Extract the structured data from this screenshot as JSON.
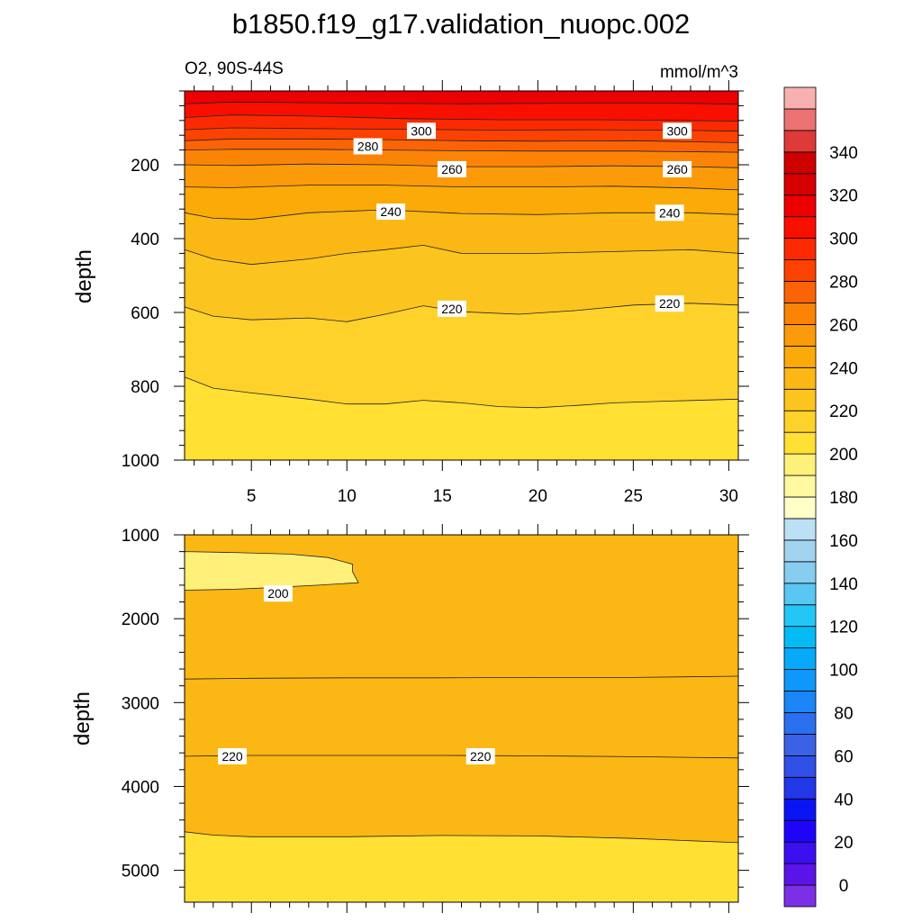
{
  "title": "b1850.f19_g17.validation_nuopc.002",
  "chart_data": {
    "type": "contour",
    "variable_label": "O2, 90S-44S",
    "units_label": "mmol/m^3",
    "ylabel": "depth",
    "x_range": [
      1.5,
      30.5
    ],
    "x_ticks": [
      5,
      10,
      15,
      20,
      25,
      30
    ],
    "colorbar": {
      "levels": [
        0,
        10,
        20,
        30,
        40,
        50,
        60,
        70,
        80,
        90,
        100,
        110,
        120,
        130,
        140,
        150,
        160,
        170,
        180,
        190,
        200,
        210,
        220,
        230,
        240,
        250,
        260,
        270,
        280,
        290,
        300,
        310,
        320,
        330,
        340,
        350
      ],
      "tick_labels": [
        "0",
        "20",
        "40",
        "60",
        "80",
        "100",
        "120",
        "140",
        "160",
        "180",
        "200",
        "220",
        "240",
        "260",
        "280",
        "300",
        "320",
        "340"
      ],
      "colors": [
        "#7d2fe6",
        "#5b14e8",
        "#3a10f0",
        "#1e05fa",
        "#0a14f2",
        "#2137e8",
        "#2f4fe6",
        "#3b62e4",
        "#2a6ff0",
        "#1a86f7",
        "#0f97fb",
        "#07aaf9",
        "#05bbf6",
        "#23c7f7",
        "#5bc6f2",
        "#86cdf0",
        "#a2d4f0",
        "#bde1f4",
        "#ffffc8",
        "#fff8a0",
        "#fff07a",
        "#ffe033",
        "#fed22a",
        "#fcc41f",
        "#fbb713",
        "#fbaa08",
        "#fc9b0a",
        "#fb8407",
        "#fa6406",
        "#fb4200",
        "#fc2a01",
        "#f90f00",
        "#ec0000",
        "#d70000",
        "#ce0000",
        "#de3a3a",
        "#ec7272",
        "#f8b0b0"
      ]
    },
    "panels": [
      {
        "name": "upper",
        "ylim": [
          0,
          1000
        ],
        "y_ticks": [
          200,
          400,
          600,
          800,
          1000
        ],
        "inverted": true,
        "isolines": [
          {
            "value": 310,
            "points": [
              [
                1.5,
                35
              ],
              [
                4,
                30
              ],
              [
                8,
                32
              ],
              [
                12,
                34
              ],
              [
                16,
                35
              ],
              [
                20,
                34
              ],
              [
                24,
                33
              ],
              [
                28,
                34
              ],
              [
                30.5,
                36
              ]
            ]
          },
          {
            "value": 300,
            "points": [
              [
                1.5,
                72
              ],
              [
                4,
                65
              ],
              [
                8,
                68
              ],
              [
                13,
                75
              ],
              [
                18,
                78
              ],
              [
                23,
                78
              ],
              [
                28,
                80
              ],
              [
                30.5,
                82
              ]
            ]
          },
          {
            "value": 290,
            "points": [
              [
                1.5,
                105
              ],
              [
                4,
                100
              ],
              [
                8,
                102
              ],
              [
                13,
                104
              ],
              [
                18,
                106
              ],
              [
                23,
                105
              ],
              [
                28,
                107
              ],
              [
                30.5,
                109
              ]
            ]
          },
          {
            "value": 280,
            "points": [
              [
                1.5,
                135
              ],
              [
                4,
                130
              ],
              [
                8,
                130
              ],
              [
                12,
                132
              ],
              [
                16,
                135
              ],
              [
                20,
                136
              ],
              [
                25,
                135
              ],
              [
                30.5,
                140
              ]
            ]
          },
          {
            "value": 270,
            "points": [
              [
                1.5,
                160
              ],
              [
                4,
                158
              ],
              [
                8,
                158
              ],
              [
                12,
                160
              ],
              [
                16,
                162
              ],
              [
                20,
                163
              ],
              [
                25,
                163
              ],
              [
                30.5,
                166
              ]
            ]
          },
          {
            "value": 260,
            "points": [
              [
                1.5,
                200
              ],
              [
                4,
                202
              ],
              [
                8,
                198
              ],
              [
                12,
                200
              ],
              [
                16,
                205
              ],
              [
                20,
                205
              ],
              [
                24,
                203
              ],
              [
                28,
                205
              ],
              [
                30.5,
                208
              ]
            ]
          },
          {
            "value": 250,
            "points": [
              [
                1.5,
                260
              ],
              [
                4,
                262
              ],
              [
                8,
                255
              ],
              [
                12,
                255
              ],
              [
                16,
                260
              ],
              [
                20,
                260
              ],
              [
                24,
                258
              ],
              [
                28,
                263
              ],
              [
                30.5,
                268
              ]
            ]
          },
          {
            "value": 240,
            "points": [
              [
                1.5,
                330
              ],
              [
                3,
                345
              ],
              [
                5,
                348
              ],
              [
                8,
                330
              ],
              [
                12,
                322
              ],
              [
                16,
                332
              ],
              [
                20,
                335
              ],
              [
                24,
                330
              ],
              [
                28,
                330
              ],
              [
                30.5,
                335
              ]
            ]
          },
          {
            "value": 230,
            "points": [
              [
                1.5,
                430
              ],
              [
                3,
                455
              ],
              [
                5,
                470
              ],
              [
                8,
                455
              ],
              [
                10,
                440
              ],
              [
                12,
                430
              ],
              [
                14,
                418
              ],
              [
                16,
                440
              ],
              [
                20,
                440
              ],
              [
                24,
                435
              ],
              [
                28,
                430
              ],
              [
                30.5,
                440
              ]
            ]
          },
          {
            "value": 220,
            "points": [
              [
                1.5,
                585
              ],
              [
                3,
                610
              ],
              [
                5,
                620
              ],
              [
                8,
                615
              ],
              [
                10,
                625
              ],
              [
                12,
                605
              ],
              [
                14,
                582
              ],
              [
                16,
                598
              ],
              [
                19,
                605
              ],
              [
                22,
                595
              ],
              [
                25,
                580
              ],
              [
                28,
                575
              ],
              [
                30.5,
                580
              ]
            ]
          },
          {
            "value": 210,
            "points": [
              [
                1.5,
                775
              ],
              [
                3,
                805
              ],
              [
                5,
                818
              ],
              [
                8,
                835
              ],
              [
                10,
                848
              ],
              [
                12,
                848
              ],
              [
                14,
                838
              ],
              [
                16,
                845
              ],
              [
                18,
                855
              ],
              [
                20,
                858
              ],
              [
                22,
                852
              ],
              [
                24,
                845
              ],
              [
                27,
                840
              ],
              [
                30.5,
                835
              ]
            ]
          }
        ],
        "labels": [
          {
            "text": "300",
            "x": 13.9,
            "y": 108
          },
          {
            "text": "300",
            "x": 27.3,
            "y": 108
          },
          {
            "text": "280",
            "x": 11.1,
            "y": 150
          },
          {
            "text": "260",
            "x": 15.5,
            "y": 212
          },
          {
            "text": "260",
            "x": 27.3,
            "y": 212
          },
          {
            "text": "240",
            "x": 12.3,
            "y": 327
          },
          {
            "text": "240",
            "x": 26.9,
            "y": 330
          },
          {
            "text": "220",
            "x": 15.5,
            "y": 590
          },
          {
            "text": "220",
            "x": 26.9,
            "y": 576
          }
        ]
      },
      {
        "name": "lower",
        "ylim": [
          1000,
          5380
        ],
        "y_ticks": [
          1000,
          2000,
          3000,
          4000,
          5000
        ],
        "inverted": true,
        "isolines": [
          {
            "value": 210,
            "points": [
              [
                1.5,
                2720
              ],
              [
                5,
                2710
              ],
              [
                10,
                2705
              ],
              [
                15,
                2705
              ],
              [
                20,
                2700
              ],
              [
                25,
                2700
              ],
              [
                30.5,
                2685
              ]
            ]
          },
          {
            "value": 220,
            "points": [
              [
                1.5,
                3640
              ],
              [
                5,
                3630
              ],
              [
                10,
                3630
              ],
              [
                15,
                3630
              ],
              [
                20,
                3635
              ],
              [
                25,
                3645
              ],
              [
                30.5,
                3660
              ]
            ]
          },
          {
            "value": 230,
            "points": [
              [
                1.5,
                4540
              ],
              [
                3,
                4580
              ],
              [
                5,
                4600
              ],
              [
                10,
                4600
              ],
              [
                15,
                4585
              ],
              [
                20,
                4590
              ],
              [
                25,
                4620
              ],
              [
                30.5,
                4670
              ]
            ]
          }
        ],
        "bubbles": [
          {
            "value": 200,
            "points": [
              [
                1.5,
                1200
              ],
              [
                4,
                1210
              ],
              [
                7,
                1230
              ],
              [
                9,
                1270
              ],
              [
                10.3,
                1350
              ],
              [
                10.3,
                1440
              ],
              [
                10.6,
                1570
              ],
              [
                8.5,
                1600
              ],
              [
                6,
                1630
              ],
              [
                4,
                1650
              ],
              [
                1.5,
                1660
              ]
            ]
          }
        ],
        "labels": [
          {
            "text": "200",
            "x": 6.4,
            "y": 1700
          },
          {
            "text": "220",
            "x": 4.0,
            "y": 3640
          },
          {
            "text": "220",
            "x": 17.0,
            "y": 3640
          }
        ]
      }
    ]
  }
}
